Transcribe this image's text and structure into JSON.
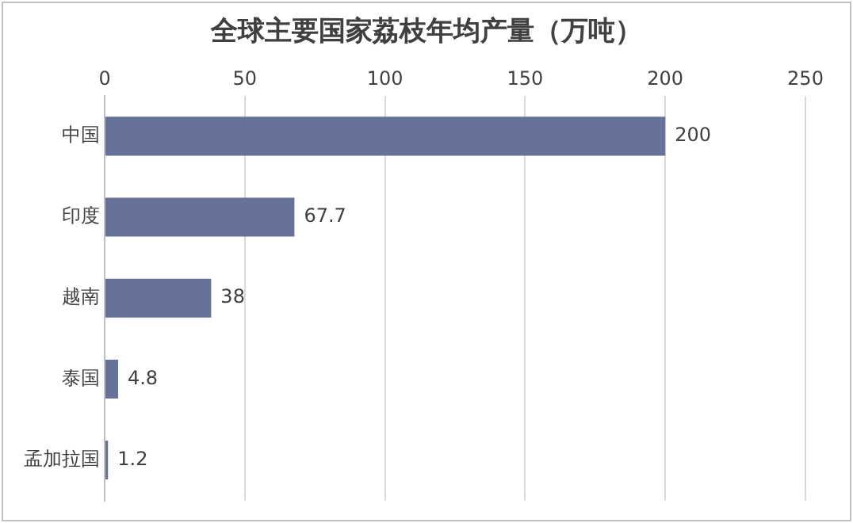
{
  "chart_data": {
    "type": "bar",
    "orientation": "horizontal",
    "title": "全球主要国家荔枝年均产量（万吨）",
    "categories": [
      "中国",
      "印度",
      "越南",
      "泰国",
      "孟加拉国"
    ],
    "values": [
      200,
      67.7,
      38,
      4.8,
      1.2
    ],
    "color": "#66729a",
    "xlim": [
      0,
      250
    ],
    "xticks": [
      0,
      50,
      100,
      150,
      200,
      250
    ],
    "grid": "x",
    "data_labels": true,
    "legend": false
  }
}
